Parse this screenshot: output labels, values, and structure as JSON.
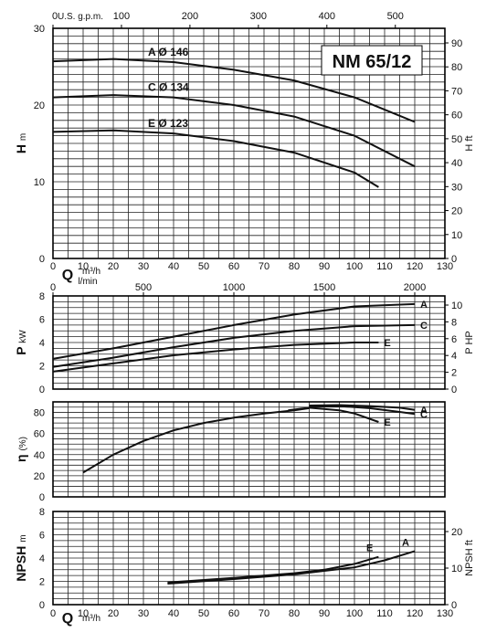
{
  "chart_data": {
    "type": "line",
    "title": "NM 65/12",
    "x_axis": {
      "label": "Q",
      "unit": "m³/h",
      "min": 0,
      "max": 130,
      "step": 10,
      "ticks": [
        "0",
        "10",
        "20",
        "30",
        "40",
        "50",
        "60",
        "70",
        "80",
        "90",
        "100",
        "110",
        "120",
        "130"
      ],
      "alt_top_gpm": {
        "label": "U.S. g.p.m.",
        "ticks": [
          "0",
          "100",
          "200",
          "300",
          "400",
          "500"
        ],
        "values": [
          0,
          100,
          200,
          300,
          400,
          500
        ]
      },
      "alt_lmin": {
        "label": "l/min",
        "ticks": [
          "0",
          "500",
          "1000",
          "1500",
          "2000"
        ],
        "values": [
          0,
          500,
          1000,
          1500,
          2000
        ]
      }
    },
    "panels": [
      {
        "name": "head",
        "ylabel": "H",
        "yunit": "m",
        "ylim": [
          0,
          30
        ],
        "yticks": [
          "0",
          "10",
          "20",
          "30"
        ],
        "y2label": "H",
        "y2unit": "ft",
        "y2ticks": [
          "0",
          "10",
          "20",
          "30",
          "40",
          "50",
          "60",
          "70",
          "80",
          "90"
        ],
        "series": [
          {
            "name": "A",
            "label": "A Ø 146",
            "x": [
              0,
              20,
              40,
              60,
              80,
              100,
              120
            ],
            "y": [
              25.7,
              26.0,
              25.6,
              24.6,
              23.2,
              21.0,
              17.8
            ]
          },
          {
            "name": "C",
            "label": "C Ø 134",
            "x": [
              0,
              20,
              40,
              60,
              80,
              100,
              120
            ],
            "y": [
              21.0,
              21.3,
              21.0,
              20.0,
              18.5,
              16.0,
              12.0
            ]
          },
          {
            "name": "E",
            "label": "E Ø 123",
            "x": [
              0,
              20,
              40,
              60,
              80,
              100,
              108
            ],
            "y": [
              16.5,
              16.7,
              16.3,
              15.3,
              13.8,
              11.2,
              9.3
            ]
          }
        ]
      },
      {
        "name": "power",
        "ylabel": "P",
        "yunit": "kW",
        "ylim": [
          0,
          8
        ],
        "yticks": [
          "0",
          "2",
          "4",
          "6",
          "8"
        ],
        "y2label": "P",
        "y2unit": "HP",
        "y2ticks": [
          "0",
          "2",
          "4",
          "6",
          "8",
          "10"
        ],
        "series": [
          {
            "name": "A",
            "x": [
              0,
              20,
              40,
              60,
              80,
              100,
              120
            ],
            "y": [
              2.6,
              3.5,
              4.5,
              5.5,
              6.4,
              7.1,
              7.3
            ]
          },
          {
            "name": "C",
            "x": [
              0,
              20,
              40,
              60,
              80,
              100,
              120
            ],
            "y": [
              1.9,
              2.7,
              3.6,
              4.4,
              5.0,
              5.4,
              5.5
            ]
          },
          {
            "name": "E",
            "x": [
              0,
              20,
              40,
              60,
              80,
              100,
              108
            ],
            "y": [
              1.5,
              2.2,
              2.9,
              3.4,
              3.8,
              4.0,
              4.0
            ]
          }
        ]
      },
      {
        "name": "efficiency",
        "ylabel": "η",
        "yunit": "(%)",
        "ylim": [
          0,
          90
        ],
        "yticks": [
          "0",
          "20",
          "40",
          "60",
          "80"
        ],
        "series": [
          {
            "name": "A",
            "x": [
              85,
              95,
              105,
              115,
              120
            ],
            "y": [
              86.5,
              87,
              86,
              84.5,
              82.5
            ]
          },
          {
            "name": "C",
            "x": [
              85,
              95,
              105,
              115,
              120
            ],
            "y": [
              85.5,
              86,
              84,
              80.5,
              78.5
            ]
          },
          {
            "name": "E",
            "x": [
              78,
              85,
              95,
              100,
              108
            ],
            "y": [
              82,
              84.5,
              82,
              79,
              71
            ]
          },
          {
            "name": "common",
            "x": [
              10,
              20,
              30,
              40,
              50,
              60,
              70,
              80,
              85
            ],
            "y": [
              23,
              40,
              53,
              63,
              70,
              75,
              79,
              82,
              84
            ]
          }
        ]
      },
      {
        "name": "npsh",
        "ylabel": "NPSH",
        "yunit": "m",
        "ylim": [
          0,
          8
        ],
        "yticks": [
          "0",
          "2",
          "4",
          "6",
          "8"
        ],
        "y2label": "NPSH",
        "y2unit": "ft",
        "y2ticks": [
          "0",
          "10",
          "20"
        ],
        "series": [
          {
            "name": "A",
            "x": [
              38,
              60,
              80,
              90,
              100,
              110,
              120
            ],
            "y": [
              1.8,
              2.2,
              2.6,
              2.9,
              3.2,
              3.8,
              4.6
            ]
          },
          {
            "name": "E",
            "x": [
              38,
              60,
              80,
              90,
              100,
              108
            ],
            "y": [
              1.9,
              2.3,
              2.7,
              3.0,
              3.5,
              4.1
            ]
          }
        ]
      }
    ]
  }
}
